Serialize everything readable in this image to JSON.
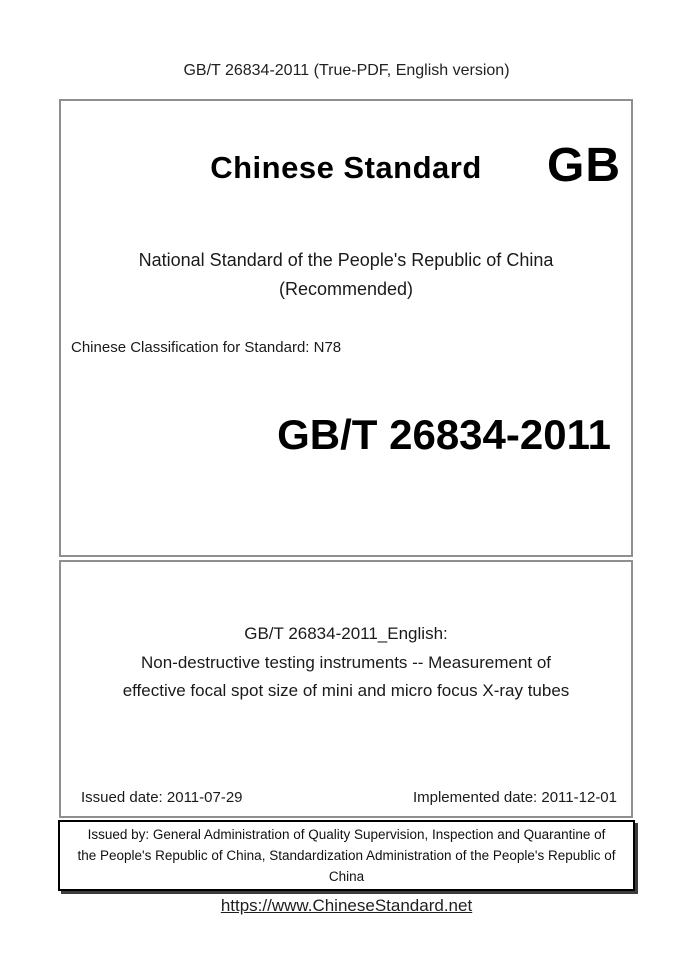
{
  "header": {
    "text": "GB/T 26834-2011 (True-PDF, English version)"
  },
  "cover": {
    "brand_title": "Chinese Standard",
    "gb_logo": "GB",
    "subtitle_line1": "National Standard of the People's Republic of China",
    "subtitle_line2": "(Recommended)",
    "classification": "Chinese Classification for Standard: N78",
    "standard_number": "GB/T 26834-2011"
  },
  "english_section": {
    "line1": "GB/T 26834-2011_English:",
    "line2": "Non-destructive testing instruments -- Measurement of",
    "line3": "effective focal spot size of mini and micro focus X-ray tubes",
    "issued_date": "Issued date: 2011-07-29",
    "implemented_date": "Implemented date: 2011-12-01"
  },
  "issuer": {
    "line1": "Issued by: General Administration of Quality Supervision, Inspection and Quarantine of",
    "line2": "the People's Republic of China, Standardization Administration of the People's Republic of",
    "line3": "China"
  },
  "footer": {
    "link_text": "https://www.ChineseStandard.net",
    "link_url": "https://www.ChineseStandard.net"
  },
  "colors": {
    "panel_border_gray": "#8f8f8f",
    "issuer_border_black": "#000000",
    "text_black": "#1a1a1a"
  }
}
